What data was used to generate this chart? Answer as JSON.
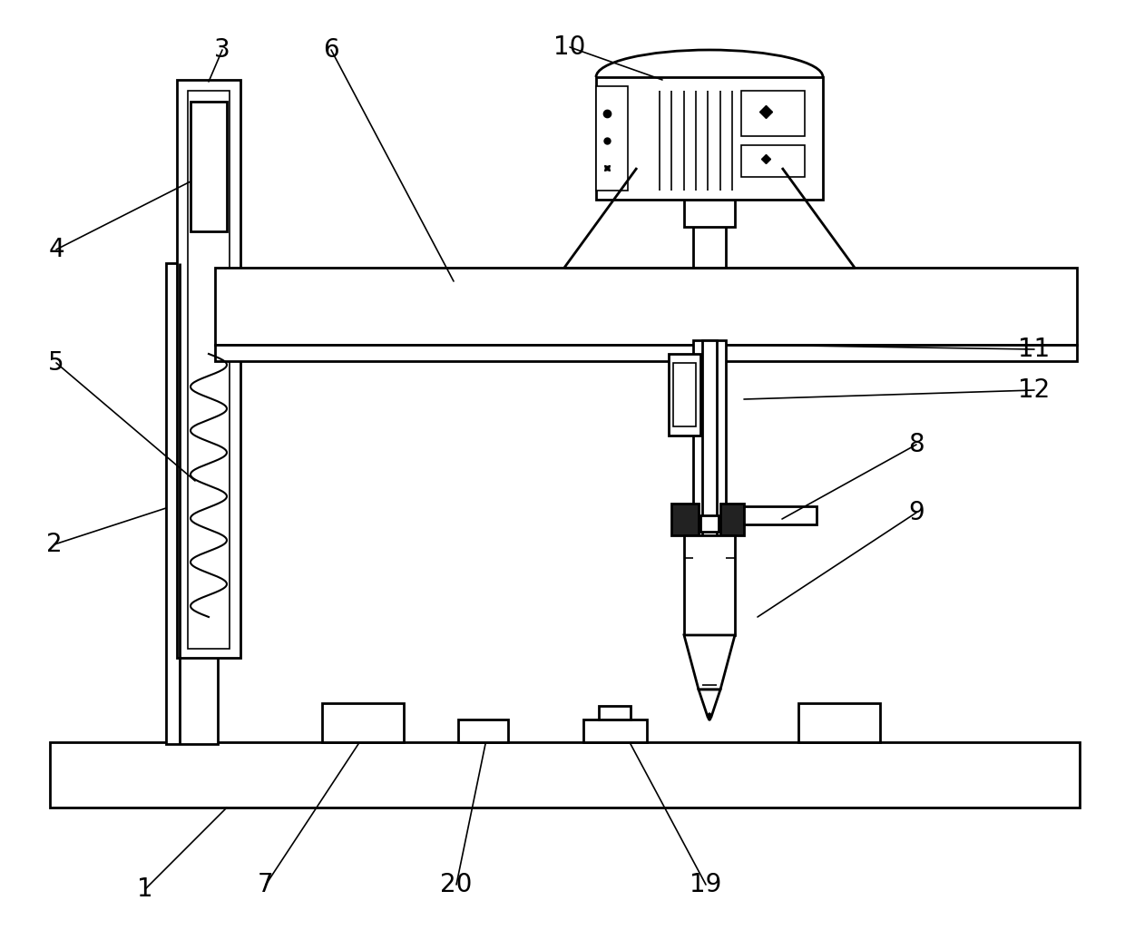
{
  "bg_color": "#ffffff",
  "line_color": "#000000",
  "lw": 2.0,
  "tlw": 1.2,
  "fig_width": 12.4,
  "fig_height": 10.25,
  "dpi": 100
}
